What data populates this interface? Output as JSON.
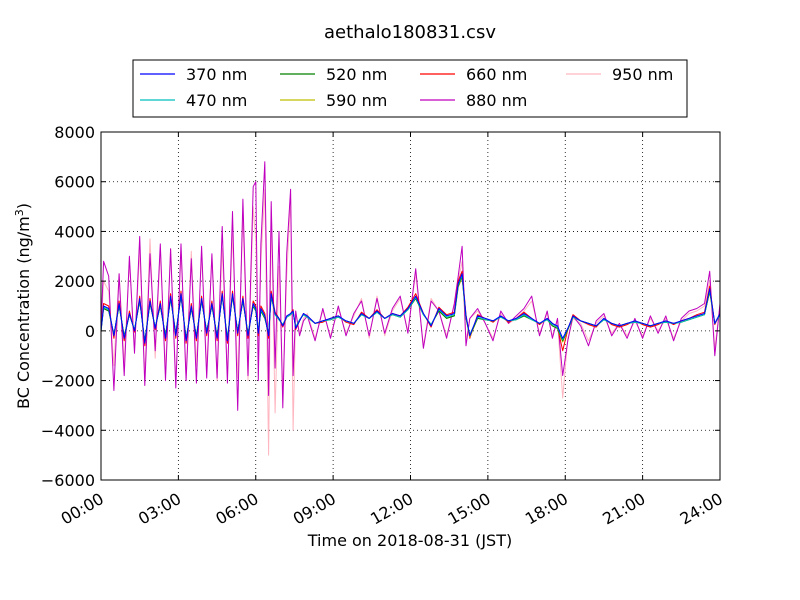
{
  "chart_data": {
    "type": "line",
    "title": "aethalo180831.csv",
    "xlabel": "Time on 2018-08-31 (JST)",
    "ylabel": "BC Concentration (ng/m",
    "ylabel_superscript": "3",
    "ylabel_suffix": ")",
    "xlim": [
      "00:00",
      "24:00"
    ],
    "ylim": [
      -6000,
      8000
    ],
    "grid": true,
    "grid_style": "dotted",
    "legend_position": "above",
    "legend_columns": 4,
    "x_ticks": [
      "00:00",
      "03:00",
      "06:00",
      "09:00",
      "12:00",
      "15:00",
      "18:00",
      "21:00",
      "24:00"
    ],
    "y_ticks": [
      8000,
      6000,
      4000,
      2000,
      0,
      -2000,
      -4000,
      -6000
    ],
    "y_tick_labels": [
      "8000",
      "6000",
      "4000",
      "2000",
      "0",
      "−2000",
      "−4000",
      "−6000"
    ],
    "x_hours": [
      0,
      0.1,
      0.3,
      0.5,
      0.7,
      0.9,
      1.1,
      1.3,
      1.5,
      1.7,
      1.9,
      2.1,
      2.3,
      2.5,
      2.7,
      2.9,
      3.1,
      3.3,
      3.5,
      3.7,
      3.9,
      4.1,
      4.3,
      4.5,
      4.7,
      4.9,
      5.1,
      5.3,
      5.5,
      5.7,
      5.9,
      6.0,
      6.1,
      6.2,
      6.35,
      6.5,
      6.6,
      6.75,
      6.9,
      7.05,
      7.2,
      7.35,
      7.45,
      7.55,
      7.7,
      7.85,
      8.0,
      8.3,
      8.6,
      8.9,
      9.2,
      9.5,
      9.8,
      10.1,
      10.4,
      10.7,
      11.0,
      11.3,
      11.6,
      11.9,
      12.2,
      12.5,
      12.8,
      13.1,
      13.4,
      13.7,
      13.85,
      14.0,
      14.15,
      14.3,
      14.6,
      14.9,
      15.2,
      15.5,
      15.8,
      16.1,
      16.4,
      16.7,
      17.0,
      17.3,
      17.5,
      17.7,
      17.9,
      18.1,
      18.3,
      18.6,
      18.9,
      19.2,
      19.5,
      19.8,
      20.1,
      20.4,
      20.7,
      21.0,
      21.3,
      21.6,
      21.9,
      22.2,
      22.5,
      22.8,
      23.1,
      23.4,
      23.6,
      23.8,
      24.0
    ],
    "series": [
      {
        "name": "370 nm",
        "color": "#0000ff",
        "values": [
          0,
          1000,
          900,
          -200,
          1100,
          -300,
          700,
          0,
          1300,
          -500,
          1200,
          100,
          1100,
          -300,
          1400,
          -200,
          1500,
          -400,
          1000,
          -300,
          1300,
          -100,
          1100,
          -300,
          1500,
          -400,
          1500,
          -100,
          1300,
          -200,
          1100,
          900,
          -100,
          900,
          600,
          -200,
          1500,
          700,
          500,
          200,
          600,
          700,
          800,
          100,
          400,
          700,
          600,
          300,
          400,
          500,
          600,
          400,
          300,
          700,
          500,
          800,
          500,
          700,
          600,
          900,
          1400,
          700,
          200,
          900,
          600,
          700,
          1900,
          2300,
          600,
          -200,
          600,
          500,
          400,
          600,
          400,
          500,
          700,
          500,
          300,
          500,
          300,
          200,
          -300,
          100,
          600,
          400,
          300,
          200,
          500,
          300,
          200,
          300,
          400,
          300,
          200,
          300,
          400,
          300,
          400,
          500,
          600,
          700,
          1700,
          300,
          700
        ]
      },
      {
        "name": "470 nm",
        "color": "#00bfbf",
        "values": [
          0,
          950,
          850,
          -150,
          1050,
          -250,
          650,
          50,
          1250,
          -450,
          1150,
          150,
          1050,
          -250,
          1350,
          -150,
          1450,
          -350,
          950,
          -250,
          1250,
          -50,
          1050,
          -250,
          1450,
          -350,
          1450,
          -50,
          1250,
          -150,
          1050,
          850,
          -50,
          850,
          550,
          -150,
          1450,
          650,
          450,
          250,
          550,
          650,
          750,
          150,
          450,
          650,
          550,
          300,
          400,
          450,
          550,
          400,
          300,
          650,
          500,
          750,
          500,
          650,
          550,
          850,
          1350,
          650,
          250,
          850,
          550,
          650,
          1850,
          2250,
          550,
          -150,
          550,
          450,
          400,
          550,
          400,
          450,
          650,
          450,
          300,
          450,
          250,
          150,
          -350,
          100,
          550,
          400,
          300,
          200,
          450,
          300,
          200,
          300,
          350,
          300,
          200,
          300,
          350,
          300,
          350,
          450,
          550,
          650,
          1650,
          300,
          650
        ]
      },
      {
        "name": "520 nm",
        "color": "#008000",
        "values": [
          0,
          900,
          800,
          -150,
          1000,
          -200,
          650,
          50,
          1200,
          -400,
          1100,
          150,
          1000,
          -200,
          1300,
          -100,
          1400,
          -300,
          900,
          -200,
          1200,
          0,
          1000,
          -200,
          1400,
          -300,
          1400,
          0,
          1200,
          -100,
          1000,
          800,
          0,
          800,
          500,
          -100,
          1400,
          650,
          450,
          250,
          550,
          650,
          750,
          150,
          450,
          650,
          550,
          300,
          400,
          450,
          550,
          400,
          300,
          650,
          500,
          750,
          500,
          650,
          550,
          850,
          1300,
          650,
          250,
          800,
          500,
          600,
          1800,
          2200,
          500,
          -200,
          500,
          450,
          400,
          550,
          400,
          450,
          600,
          450,
          300,
          450,
          200,
          100,
          -400,
          50,
          550,
          400,
          300,
          200,
          450,
          300,
          200,
          300,
          350,
          300,
          200,
          300,
          350,
          300,
          350,
          450,
          550,
          650,
          1600,
          300,
          650
        ]
      },
      {
        "name": "590 nm",
        "color": "#bfbf00",
        "values": [
          0,
          900,
          800,
          -150,
          1000,
          -200,
          650,
          50,
          1200,
          -400,
          1100,
          150,
          1000,
          -200,
          1300,
          -100,
          1400,
          -300,
          900,
          -200,
          1200,
          0,
          1000,
          -200,
          1400,
          -300,
          1400,
          0,
          1200,
          -100,
          1000,
          800,
          0,
          800,
          500,
          -100,
          1400,
          650,
          450,
          250,
          550,
          650,
          750,
          150,
          450,
          650,
          550,
          300,
          400,
          450,
          550,
          400,
          300,
          650,
          500,
          750,
          500,
          650,
          550,
          850,
          1300,
          650,
          250,
          800,
          500,
          600,
          1750,
          2150,
          500,
          -250,
          500,
          450,
          400,
          550,
          400,
          450,
          600,
          450,
          300,
          450,
          200,
          100,
          -450,
          50,
          550,
          400,
          300,
          200,
          450,
          300,
          200,
          300,
          350,
          300,
          200,
          300,
          350,
          300,
          350,
          450,
          550,
          650,
          1550,
          300,
          650
        ]
      },
      {
        "name": "660 nm",
        "color": "#ff0000",
        "values": [
          0,
          1100,
          1000,
          -300,
          1200,
          -400,
          800,
          -50,
          1400,
          -600,
          1300,
          50,
          1200,
          -400,
          1500,
          -300,
          1600,
          -500,
          1100,
          -400,
          1400,
          -200,
          1200,
          -400,
          1600,
          -500,
          1600,
          -200,
          1400,
          -300,
          1200,
          1000,
          -200,
          1000,
          700,
          -300,
          1600,
          750,
          500,
          150,
          550,
          700,
          850,
          50,
          400,
          700,
          600,
          300,
          350,
          500,
          600,
          350,
          250,
          750,
          500,
          850,
          500,
          700,
          600,
          950,
          1500,
          700,
          150,
          950,
          650,
          750,
          2000,
          2400,
          650,
          -300,
          650,
          500,
          350,
          600,
          350,
          500,
          750,
          500,
          250,
          500,
          300,
          150,
          -800,
          50,
          650,
          400,
          250,
          150,
          500,
          250,
          150,
          250,
          400,
          250,
          150,
          250,
          400,
          250,
          400,
          500,
          650,
          750,
          1800,
          250,
          700
        ]
      },
      {
        "name": "880 nm",
        "color": "#bf00bf",
        "values": [
          0,
          2800,
          2200,
          -2400,
          2300,
          -1800,
          3000,
          -900,
          3800,
          -2200,
          3100,
          -800,
          3500,
          -2000,
          3300,
          -2300,
          3500,
          -2000,
          2900,
          -2100,
          3400,
          -1900,
          3100,
          -1900,
          4200,
          -2100,
          4800,
          -3200,
          5300,
          -1800,
          5800,
          6000,
          -2000,
          3500,
          6800,
          -2600,
          5200,
          -1500,
          4000,
          -3100,
          3100,
          5700,
          -1800,
          800,
          -200,
          400,
          600,
          -400,
          900,
          -300,
          1000,
          -200,
          700,
          1200,
          -200,
          1300,
          -100,
          900,
          1400,
          -100,
          2500,
          -700,
          1200,
          800,
          -300,
          1100,
          2200,
          3400,
          -600,
          500,
          900,
          300,
          -400,
          800,
          300,
          600,
          900,
          1400,
          -200,
          800,
          -300,
          500,
          -1800,
          -400,
          600,
          200,
          -600,
          400,
          700,
          -200,
          300,
          -300,
          500,
          -300,
          600,
          -100,
          600,
          -400,
          500,
          800,
          900,
          1100,
          2400,
          -1000,
          1100
        ]
      },
      {
        "name": "950 nm",
        "color": "#ffb6c1",
        "values": [
          0,
          2000,
          1600,
          -1400,
          2300,
          -1300,
          2800,
          -700,
          3200,
          -1800,
          3700,
          -1100,
          3200,
          -1600,
          3300,
          -2000,
          3200,
          -1800,
          3200,
          -1400,
          3100,
          -1500,
          3000,
          -2000,
          3300,
          -1800,
          3900,
          -1900,
          4600,
          -2000,
          5000,
          3600,
          -1100,
          2800,
          5700,
          -5000,
          4800,
          -3300,
          2600,
          -2500,
          2200,
          5300,
          -4000,
          700,
          -100,
          500,
          700,
          -300,
          800,
          -200,
          900,
          -100,
          600,
          1300,
          -300,
          1400,
          -200,
          800,
          1300,
          0,
          2300,
          -600,
          1300,
          800,
          -200,
          1000,
          2000,
          2800,
          -400,
          500,
          800,
          300,
          -300,
          700,
          300,
          500,
          800,
          1200,
          -100,
          700,
          -200,
          400,
          -2700,
          -300,
          500,
          300,
          -400,
          300,
          600,
          -100,
          300,
          -200,
          400,
          -200,
          500,
          0,
          500,
          -300,
          400,
          700,
          800,
          1000,
          2000,
          -700,
          1000
        ]
      }
    ]
  }
}
